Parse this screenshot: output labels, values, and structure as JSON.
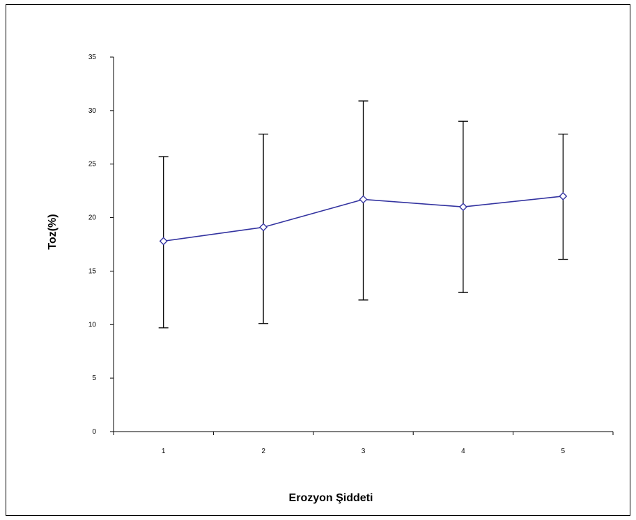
{
  "chart_data": {
    "type": "line",
    "title": "",
    "xlabel": "Erozyon Şiddeti",
    "ylabel": "Toz(%)",
    "categories": [
      "1",
      "2",
      "3",
      "4",
      "5"
    ],
    "series": [
      {
        "values": [
          17.8,
          19.1,
          21.7,
          21.0,
          22.0
        ],
        "error_upper": [
          25.7,
          27.8,
          30.9,
          29.0,
          27.8
        ],
        "error_lower": [
          9.7,
          10.1,
          12.3,
          13.0,
          16.1
        ],
        "color": "#3333a0",
        "marker": "diamond"
      }
    ],
    "ylim": [
      0,
      35
    ],
    "yticks": [
      "0",
      "5",
      "10",
      "15",
      "20",
      "25",
      "30",
      "35"
    ],
    "grid": false,
    "legend": "none"
  },
  "colors": {
    "line": "#3333a0",
    "axis": "#000000",
    "error_bar": "#000000",
    "background": "#ffffff"
  }
}
